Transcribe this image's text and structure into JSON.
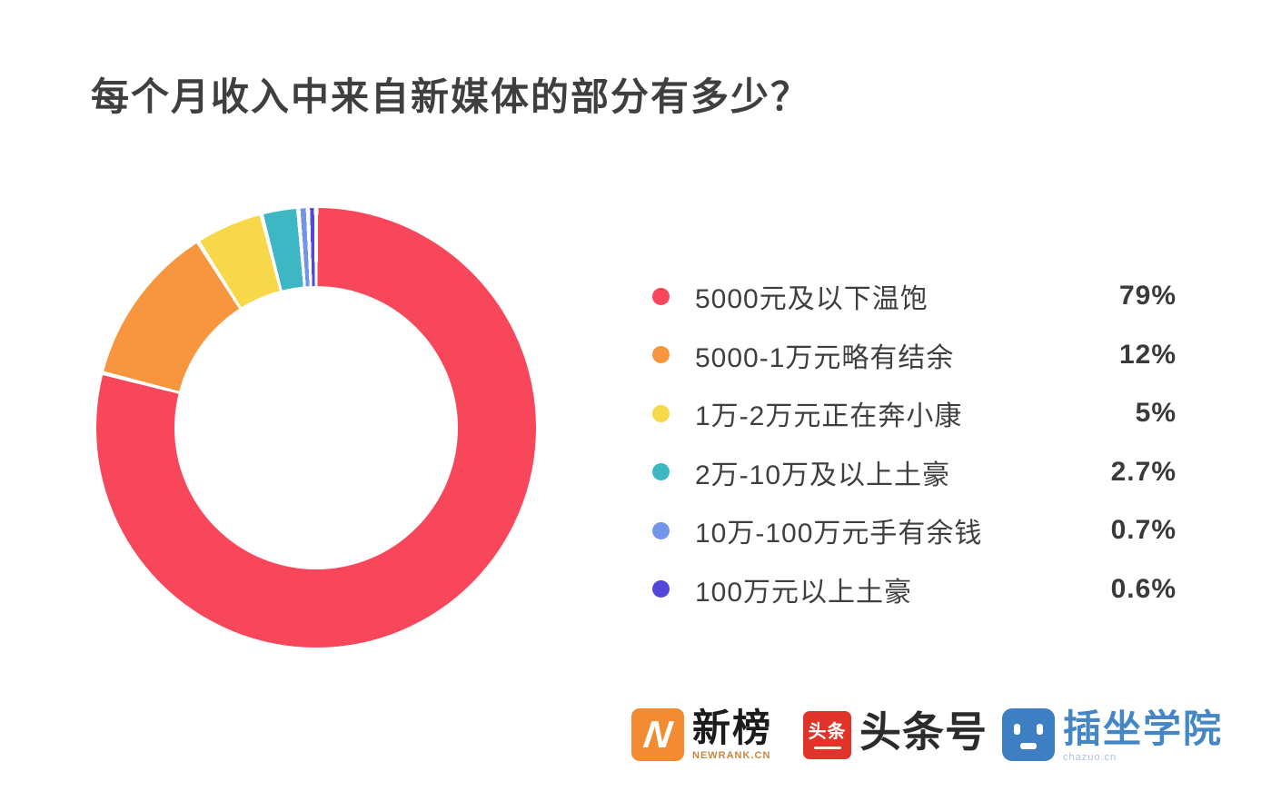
{
  "title": {
    "text": "每个月收入中来自新媒体的部分有多少？"
  },
  "chart_data": {
    "type": "pie",
    "variant": "donut",
    "title": "每个月收入中来自新媒体的部分有多少？",
    "categories": [
      "5000元及以下温饱",
      "5000-1万元略有结余",
      "1万-2万元正在奔小康",
      "2万-10万及以上土豪",
      "10万-100万元手有余钱",
      "100万元以上土豪"
    ],
    "values": [
      79,
      12,
      5,
      2.7,
      0.7,
      0.6
    ],
    "display_values": [
      "79%",
      "12%",
      "5%",
      "2.7%",
      "0.7%",
      "0.6%"
    ],
    "unit": "%",
    "colors": [
      "#f8475a",
      "#f8963f",
      "#f7d84a",
      "#3db7c4",
      "#7195e8",
      "#5148db"
    ],
    "start_angle_deg": 0,
    "direction": "clockwise",
    "inner_radius_ratio": 0.64,
    "slice_gap_deg": 1.1,
    "legend_position": "right",
    "background": "#ffffff"
  },
  "footer": {
    "logos": [
      {
        "name": "newrank",
        "icon": "newrank-n-icon",
        "icon_text": "N",
        "text": "新榜",
        "subtext": "NEWRANK.CN",
        "icon_color": "#f28b31"
      },
      {
        "name": "toutiao",
        "icon": "toutiao-icon",
        "icon_text": "头条",
        "text": "头条号",
        "icon_color": "#e0342b"
      },
      {
        "name": "chazuo",
        "icon": "chazuo-face-icon",
        "text": "插坐学院",
        "subtext": "chazuo.cn",
        "icon_color": "#3e7ec2"
      }
    ]
  }
}
